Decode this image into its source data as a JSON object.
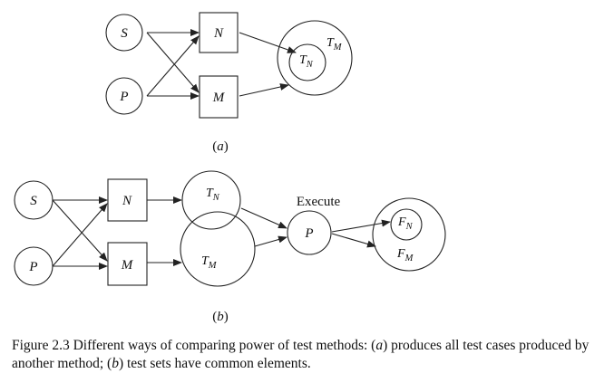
{
  "panel_a": {
    "label_open": "(",
    "label_letter": "a",
    "label_close": ")",
    "nodes": {
      "S": "S",
      "P": "P",
      "N": "N",
      "M": "M"
    },
    "sets": {
      "outer_main": "T",
      "outer_sub": "M",
      "inner_main": "T",
      "inner_sub": "N"
    }
  },
  "panel_b": {
    "label_open": "(",
    "label_letter": "b",
    "label_close": ")",
    "nodes": {
      "S": "S",
      "P": "P",
      "N": "N",
      "M": "M",
      "exec_P": "P"
    },
    "execute_label": "Execute",
    "sets": {
      "tn_main": "T",
      "tn_sub": "N",
      "tm_main": "T",
      "tm_sub": "M",
      "fn_main": "F",
      "fn_sub": "N",
      "fm_main": "F",
      "fm_sub": "M"
    }
  },
  "caption": {
    "prefix": "Figure 2.3   Different ways of comparing power of test methods: (",
    "a_letter": "a",
    "middle": ") produces all test cases produced by another method; (",
    "b_letter": "b",
    "suffix": ") test sets have common elements."
  }
}
